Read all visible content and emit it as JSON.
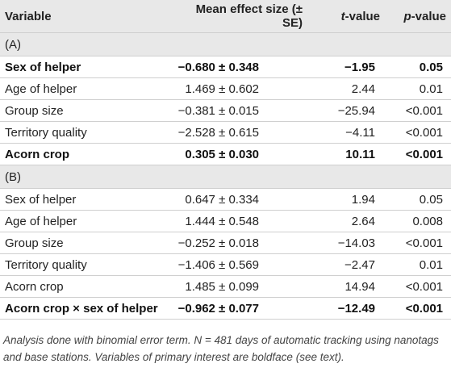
{
  "table": {
    "headers": {
      "variable": "Variable",
      "mean": "Mean effect size (± SE)",
      "t_prefix": "t",
      "t_suffix": "-value",
      "p_prefix": "p",
      "p_suffix": "-value"
    },
    "sections": [
      {
        "label": "(A)",
        "rows": [
          {
            "variable": "Sex of helper",
            "mean": "−0.680 ± 0.348",
            "t": "−1.95",
            "p": "0.05",
            "bold": true
          },
          {
            "variable": "Age of helper",
            "mean": "1.469 ± 0.602",
            "t": "2.44",
            "p": "0.01",
            "bold": false
          },
          {
            "variable": "Group size",
            "mean": "−0.381 ± 0.015",
            "t": "−25.94",
            "p": "<0.001",
            "bold": false
          },
          {
            "variable": "Territory quality",
            "mean": "−2.528 ± 0.615",
            "t": "−4.11",
            "p": "<0.001",
            "bold": false
          },
          {
            "variable": "Acorn crop",
            "mean": "0.305 ± 0.030",
            "t": "10.11",
            "p": "<0.001",
            "bold": true
          }
        ]
      },
      {
        "label": "(B)",
        "rows": [
          {
            "variable": "Sex of helper",
            "mean": "0.647 ± 0.334",
            "t": "1.94",
            "p": "0.05",
            "bold": false
          },
          {
            "variable": "Age of helper",
            "mean": "1.444 ± 0.548",
            "t": "2.64",
            "p": "0.008",
            "bold": false
          },
          {
            "variable": "Group size",
            "mean": "−0.252 ± 0.018",
            "t": "−14.03",
            "p": "<0.001",
            "bold": false
          },
          {
            "variable": "Territory quality",
            "mean": "−1.406 ± 0.569",
            "t": "−2.47",
            "p": "0.01",
            "bold": false
          },
          {
            "variable": "Acorn crop",
            "mean": "1.485 ± 0.099",
            "t": "14.94",
            "p": "<0.001",
            "bold": false
          },
          {
            "variable": "Acorn crop × sex of helper",
            "mean": "−0.962 ± 0.077",
            "t": "−12.49",
            "p": "<0.001",
            "bold": true
          }
        ]
      }
    ]
  },
  "footnote": {
    "text": "Analysis done with binomial error term. N = 481 days of automatic tracking using nanotags and base stations. Variables of primary interest are boldface (see text)."
  },
  "colors": {
    "header_bg": "#e8e8e8",
    "rule": "#cfcfcf",
    "text": "#222222"
  }
}
